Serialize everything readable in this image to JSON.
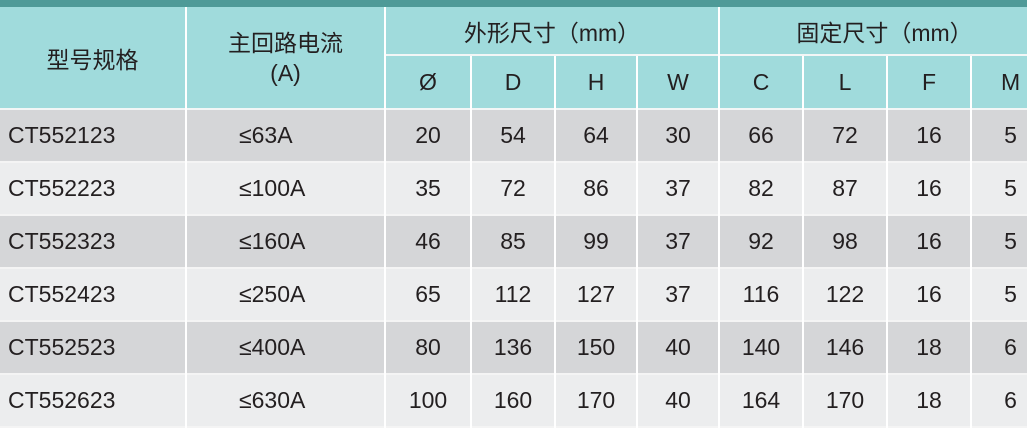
{
  "header": {
    "model": "型号规格",
    "current": "主回路电流",
    "current_unit": "(A)",
    "outer_group": "外形尺寸（mm）",
    "fixed_group": "固定尺寸（mm）",
    "columns": [
      "Ø",
      "D",
      "H",
      "W",
      "C",
      "L",
      "F",
      "M"
    ]
  },
  "rows": [
    {
      "model": "CT552123",
      "current": "≤63A",
      "values": [
        "20",
        "54",
        "64",
        "30",
        "66",
        "72",
        "16",
        "5"
      ]
    },
    {
      "model": "CT552223",
      "current": "≤100A",
      "values": [
        "35",
        "72",
        "86",
        "37",
        "82",
        "87",
        "16",
        "5"
      ]
    },
    {
      "model": "CT552323",
      "current": "≤160A",
      "values": [
        "46",
        "85",
        "99",
        "37",
        "92",
        "98",
        "16",
        "5"
      ]
    },
    {
      "model": "CT552423",
      "current": "≤250A",
      "values": [
        "65",
        "112",
        "127",
        "37",
        "116",
        "122",
        "16",
        "5"
      ]
    },
    {
      "model": "CT552523",
      "current": "≤400A",
      "values": [
        "80",
        "136",
        "150",
        "40",
        "140",
        "146",
        "18",
        "6"
      ]
    },
    {
      "model": "CT552623",
      "current": "≤630A",
      "values": [
        "100",
        "160",
        "170",
        "40",
        "164",
        "170",
        "18",
        "6"
      ]
    }
  ],
  "colors": {
    "top_bar": "#4f9a98",
    "header_bg": "#a0dbdc",
    "row_dark": "#d5d6d8",
    "row_light": "#ecedee"
  }
}
